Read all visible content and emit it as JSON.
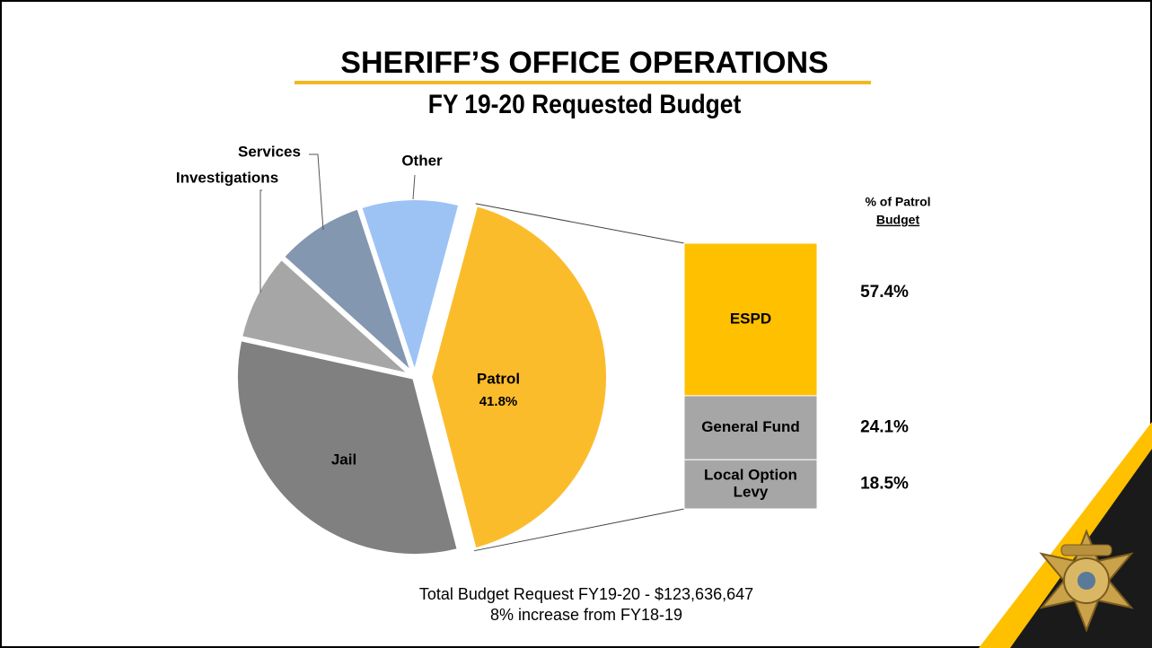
{
  "chart_data": {
    "type": "pie_of_bar",
    "title": "SHERIFF’S OFFICE OPERATIONS",
    "subtitle": "FY 19-20 Requested Budget",
    "pie": {
      "categories": [
        "Patrol",
        "Jail",
        "Investigations",
        "Services",
        "Other"
      ],
      "values": [
        41.8,
        32.5,
        8.2,
        8.3,
        9.2
      ],
      "value_labels": [
        "41.8%",
        null,
        null,
        null,
        null
      ],
      "colors": [
        "#fbbc2c",
        "#808080",
        "#a6a6a6",
        "#8497b0",
        "#9dc3f5"
      ]
    },
    "bar": {
      "header": [
        "% of Patrol",
        "Budget"
      ],
      "categories": [
        [
          "ESPD"
        ],
        [
          "General Fund"
        ],
        [
          "Local Option",
          "Levy"
        ]
      ],
      "values": [
        57.4,
        24.1,
        18.5
      ],
      "value_labels": [
        "57.4%",
        "24.1%",
        "18.5%"
      ],
      "colors": [
        "#ffc000",
        "#a6a6a6",
        "#a6a6a6"
      ]
    },
    "notes": [
      "Total Budget Request FY19-20 - $123,636,647",
      "8% increase from FY18-19"
    ]
  }
}
